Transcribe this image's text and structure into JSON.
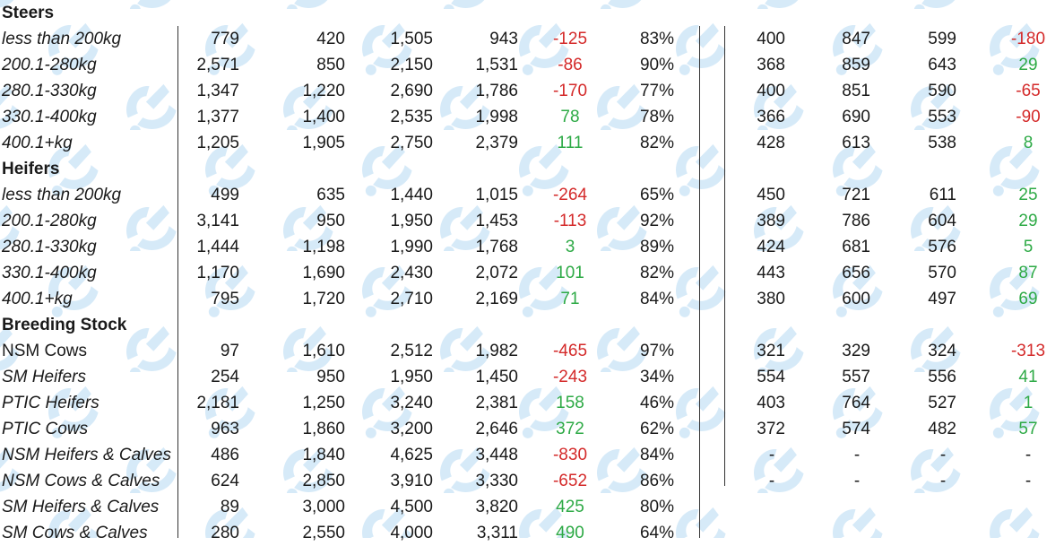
{
  "sections": [
    {
      "title": "Steers",
      "rows": [
        {
          "label": "less than 200kg",
          "italic": true,
          "vals": [
            "779",
            "420",
            "1,505",
            "943"
          ],
          "change": "-125",
          "change_sign": "neg",
          "pct": "83%",
          "right": [
            "400",
            "847",
            "599"
          ],
          "rchange": "-180",
          "rchange_sign": "neg"
        },
        {
          "label": "200.1-280kg",
          "italic": true,
          "vals": [
            "2,571",
            "850",
            "2,150",
            "1,531"
          ],
          "change": "-86",
          "change_sign": "neg",
          "pct": "90%",
          "right": [
            "368",
            "859",
            "643"
          ],
          "rchange": "29",
          "rchange_sign": "pos"
        },
        {
          "label": "280.1-330kg",
          "italic": true,
          "vals": [
            "1,347",
            "1,220",
            "2,690",
            "1,786"
          ],
          "change": "-170",
          "change_sign": "neg",
          "pct": "77%",
          "right": [
            "400",
            "851",
            "590"
          ],
          "rchange": "-65",
          "rchange_sign": "neg"
        },
        {
          "label": "330.1-400kg",
          "italic": true,
          "vals": [
            "1,377",
            "1,400",
            "2,535",
            "1,998"
          ],
          "change": "78",
          "change_sign": "pos",
          "pct": "78%",
          "right": [
            "366",
            "690",
            "553"
          ],
          "rchange": "-90",
          "rchange_sign": "neg"
        },
        {
          "label": "400.1+kg",
          "italic": true,
          "vals": [
            "1,205",
            "1,905",
            "2,750",
            "2,379"
          ],
          "change": "111",
          "change_sign": "pos",
          "pct": "82%",
          "right": [
            "428",
            "613",
            "538"
          ],
          "rchange": "8",
          "rchange_sign": "pos"
        }
      ]
    },
    {
      "title": "Heifers",
      "rows": [
        {
          "label": "less than 200kg",
          "italic": true,
          "vals": [
            "499",
            "635",
            "1,440",
            "1,015"
          ],
          "change": "-264",
          "change_sign": "neg",
          "pct": "65%",
          "right": [
            "450",
            "721",
            "611"
          ],
          "rchange": "25",
          "rchange_sign": "pos"
        },
        {
          "label": "200.1-280kg",
          "italic": true,
          "vals": [
            "3,141",
            "950",
            "1,950",
            "1,453"
          ],
          "change": "-113",
          "change_sign": "neg",
          "pct": "92%",
          "right": [
            "389",
            "786",
            "604"
          ],
          "rchange": "29",
          "rchange_sign": "pos"
        },
        {
          "label": "280.1-330kg",
          "italic": true,
          "vals": [
            "1,444",
            "1,198",
            "1,990",
            "1,768"
          ],
          "change": "3",
          "change_sign": "pos",
          "pct": "89%",
          "right": [
            "424",
            "681",
            "576"
          ],
          "rchange": "5",
          "rchange_sign": "pos"
        },
        {
          "label": "330.1-400kg",
          "italic": true,
          "vals": [
            "1,170",
            "1,690",
            "2,430",
            "2,072"
          ],
          "change": "101",
          "change_sign": "pos",
          "pct": "82%",
          "right": [
            "443",
            "656",
            "570"
          ],
          "rchange": "87",
          "rchange_sign": "pos"
        },
        {
          "label": "400.1+kg",
          "italic": true,
          "vals": [
            "795",
            "1,720",
            "2,710",
            "2,169"
          ],
          "change": "71",
          "change_sign": "pos",
          "pct": "84%",
          "right": [
            "380",
            "600",
            "497"
          ],
          "rchange": "69",
          "rchange_sign": "pos"
        }
      ]
    },
    {
      "title": "Breeding Stock",
      "rows": [
        {
          "label": "NSM Cows",
          "italic": false,
          "vals": [
            "97",
            "1,610",
            "2,512",
            "1,982"
          ],
          "change": "-465",
          "change_sign": "neg",
          "pct": "97%",
          "right": [
            "321",
            "329",
            "324"
          ],
          "rchange": "-313",
          "rchange_sign": "neg"
        },
        {
          "label": "SM Heifers",
          "italic": true,
          "vals": [
            "254",
            "950",
            "1,950",
            "1,450"
          ],
          "change": "-243",
          "change_sign": "neg",
          "pct": "34%",
          "right": [
            "554",
            "557",
            "556"
          ],
          "rchange": "41",
          "rchange_sign": "pos"
        },
        {
          "label": "PTIC Heifers",
          "italic": true,
          "vals": [
            "2,181",
            "1,250",
            "3,240",
            "2,381"
          ],
          "change": "158",
          "change_sign": "pos",
          "pct": "46%",
          "right": [
            "403",
            "764",
            "527"
          ],
          "rchange": "1",
          "rchange_sign": "pos"
        },
        {
          "label": "PTIC Cows",
          "italic": true,
          "vals": [
            "963",
            "1,860",
            "3,200",
            "2,646"
          ],
          "change": "372",
          "change_sign": "pos",
          "pct": "62%",
          "right": [
            "372",
            "574",
            "482"
          ],
          "rchange": "57",
          "rchange_sign": "pos"
        },
        {
          "label": "NSM Heifers & Calves",
          "italic": true,
          "vals": [
            "486",
            "1,840",
            "4,625",
            "3,448"
          ],
          "change": "-830",
          "change_sign": "neg",
          "pct": "84%",
          "right": [
            "-",
            "-",
            "-"
          ],
          "rchange": "-",
          "rchange_sign": "none"
        },
        {
          "label": "NSM Cows & Calves",
          "italic": true,
          "vals": [
            "624",
            "2,850",
            "3,910",
            "3,330"
          ],
          "change": "-652",
          "change_sign": "neg",
          "pct": "86%",
          "right": [
            "-",
            "-",
            "-"
          ],
          "rchange": "-",
          "rchange_sign": "none"
        },
        {
          "label": "SM Heifers & Calves",
          "italic": true,
          "vals": [
            "89",
            "3,000",
            "4,500",
            "3,820"
          ],
          "change": "425",
          "change_sign": "pos",
          "pct": "80%",
          "right": [],
          "rchange": "",
          "rchange_sign": "none"
        },
        {
          "label": "SM Cows & Calves",
          "italic": true,
          "vals": [
            "280",
            "2,550",
            "4,000",
            "3,311"
          ],
          "change": "490",
          "change_sign": "pos",
          "pct": "64%",
          "right": [],
          "rchange": "",
          "rchange_sign": "none"
        }
      ]
    }
  ],
  "colors": {
    "negative": "#d42a2a",
    "positive": "#2eaa46",
    "watermark": "#cfe6f7"
  },
  "watermark_icon": "watermark-logo-icon"
}
